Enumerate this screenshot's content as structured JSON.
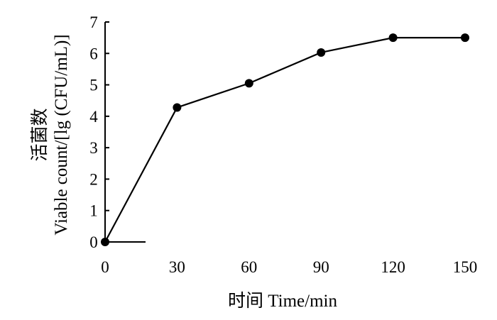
{
  "chart_data": {
    "type": "line",
    "x": [
      0,
      30,
      60,
      90,
      120,
      150
    ],
    "series": [
      {
        "values": [
          0.0,
          4.28,
          5.05,
          6.03,
          6.5,
          6.5
        ]
      }
    ],
    "xlabel": "时间  Time/min",
    "ylabel_lines": [
      "活菌数",
      "Viable count/[lg (CFU/mL)]"
    ],
    "xlim": [
      0,
      150
    ],
    "ylim": [
      0,
      7
    ],
    "x_ticks": [
      "0",
      "30",
      "60",
      "90",
      "120",
      "150"
    ],
    "y_ticks": [
      "0",
      "1",
      "2",
      "3",
      "4",
      "5",
      "6",
      "7"
    ],
    "grid": false,
    "legend": "none",
    "line_color": "#000000",
    "marker": "filled-circle"
  }
}
